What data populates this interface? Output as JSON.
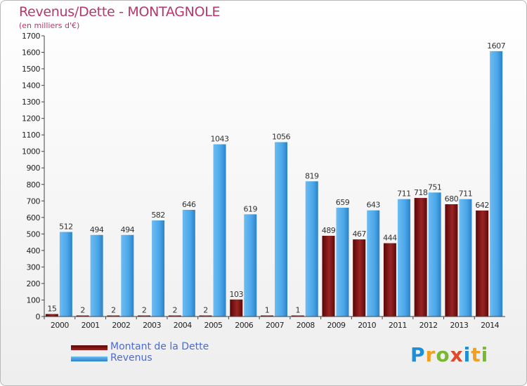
{
  "chart_data": {
    "type": "bar",
    "title": "Revenus/Dette - MONTAGNOLE",
    "subtitle": "(en milliers d'€)",
    "categories": [
      "2000",
      "2001",
      "2002",
      "2003",
      "2004",
      "2005",
      "2006",
      "2007",
      "2008",
      "2009",
      "2010",
      "2011",
      "2012",
      "2013",
      "2014"
    ],
    "series": [
      {
        "name": "Montant de la Dette",
        "color": "#7a1010",
        "values": [
          15,
          2,
          2,
          2,
          2,
          2,
          103,
          1,
          1,
          489,
          467,
          444,
          718,
          680,
          642
        ]
      },
      {
        "name": "Revenus",
        "color": "#3d9be0",
        "values": [
          512,
          494,
          494,
          582,
          646,
          1043,
          619,
          1056,
          819,
          659,
          643,
          711,
          751,
          711,
          1607
        ]
      }
    ],
    "ylim": [
      0,
      1700
    ],
    "yticks": [
      0,
      100,
      200,
      300,
      400,
      500,
      600,
      700,
      800,
      900,
      1000,
      1100,
      1200,
      1300,
      1400,
      1500,
      1600,
      1700
    ],
    "grid": false,
    "legend": "bottom-left"
  },
  "legend": {
    "debt_label": "Montant de la Dette",
    "revenue_label": "Revenus"
  },
  "logo": {
    "letters": [
      "P",
      "r",
      "o",
      "x",
      "i",
      "t",
      "i"
    ],
    "colors": [
      "#1e8fd6",
      "#f0a020",
      "#7ab830",
      "#e04a2a",
      "#1e8fd6",
      "#f0a020",
      "#7ab830"
    ]
  }
}
